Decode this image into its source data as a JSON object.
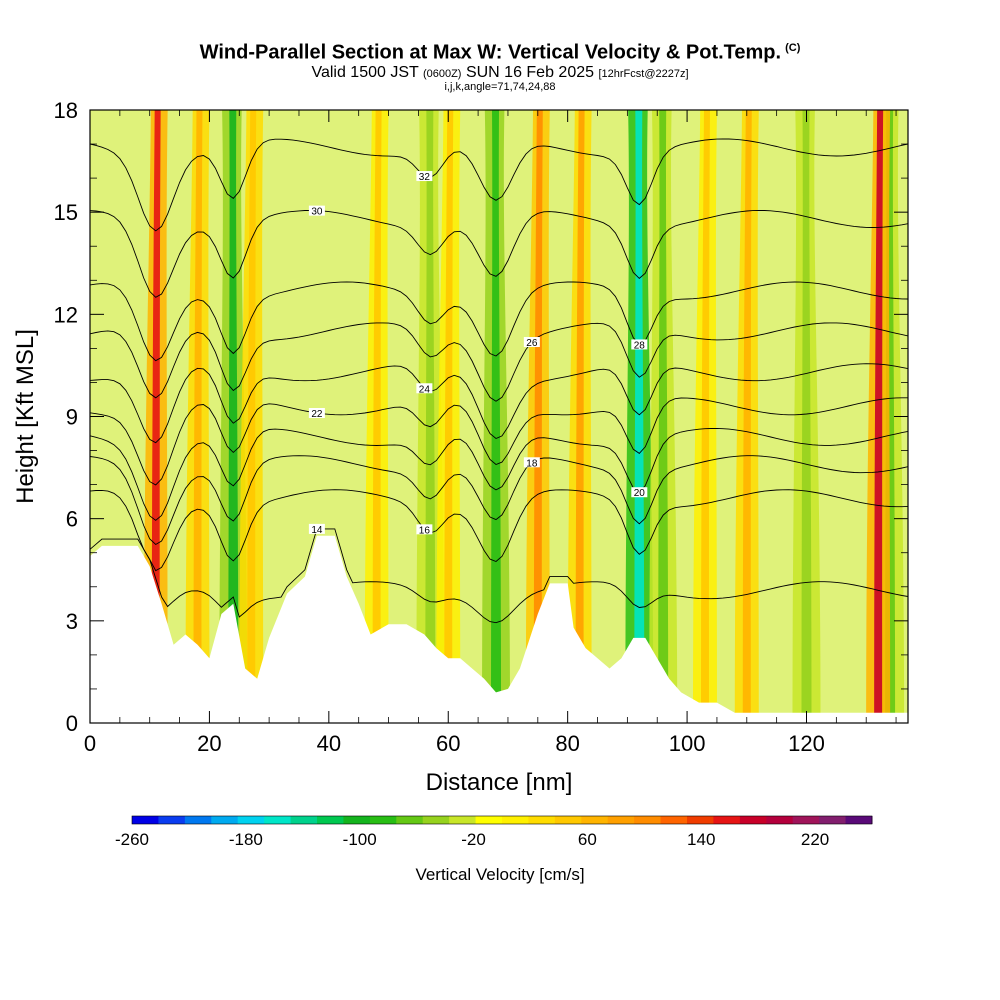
{
  "header": {
    "title": "Wind-Parallel Section at Max W: Vertical Velocity & Pot.Temp.",
    "copyright_mark": "(C)",
    "valid_prefix": "Valid 1500 JST",
    "valid_utc": "(0600Z)",
    "valid_date": "SUN 16 Feb 2025",
    "forecast_info": "[12hrFcst@2227z]",
    "grid_info": "i,j,k,angle=71,74,24,88"
  },
  "chart_data": {
    "type": "heatmap",
    "xlabel": "Distance [nm]",
    "ylabel": "Height [Kft MSL]",
    "xlim": [
      0,
      137
    ],
    "ylim": [
      0,
      18
    ],
    "x_ticks": [
      0,
      20,
      40,
      60,
      80,
      100,
      120
    ],
    "y_ticks": [
      0,
      3,
      6,
      9,
      12,
      15,
      18
    ],
    "x_tick_labels": [
      "0",
      "20",
      "40",
      "60",
      "80",
      "100",
      "120"
    ],
    "y_tick_labels": [
      "0",
      "3",
      "6",
      "9",
      "12",
      "15",
      "18"
    ],
    "colorbar": {
      "label": "Vertical Velocity [cm/s]",
      "min": -260,
      "max": 260,
      "tick_labels": [
        "-260",
        "-180",
        "-100",
        "-20",
        "60",
        "140",
        "220"
      ],
      "tick_values": [
        -260,
        -180,
        -100,
        -20,
        60,
        140,
        220
      ],
      "colors": [
        "#0000e6",
        "#0a3cf0",
        "#0078f0",
        "#00aaf0",
        "#00d2f0",
        "#00e6c8",
        "#00d28c",
        "#00c850",
        "#14b41e",
        "#28be14",
        "#64c814",
        "#96d21e",
        "#c8e628",
        "#ffff00",
        "#fff000",
        "#ffdc00",
        "#ffc800",
        "#ffb400",
        "#ffa000",
        "#ff8c00",
        "#ff6400",
        "#f03c00",
        "#e61414",
        "#c80028",
        "#b4003c",
        "#a0145a",
        "#821e6e",
        "#5a0a78"
      ]
    },
    "updrafts": [
      {
        "x": 11,
        "strength": 150
      },
      {
        "x": 18,
        "strength": 60
      },
      {
        "x": 27,
        "strength": 50
      },
      {
        "x": 48,
        "strength": 40
      },
      {
        "x": 60,
        "strength": 45
      },
      {
        "x": 75,
        "strength": 100
      },
      {
        "x": 82,
        "strength": 90
      },
      {
        "x": 103,
        "strength": 40
      },
      {
        "x": 110,
        "strength": 60
      },
      {
        "x": 132,
        "strength": 180
      }
    ],
    "downdrafts": [
      {
        "x": 24,
        "strength": -110
      },
      {
        "x": 57,
        "strength": -50
      },
      {
        "x": 68,
        "strength": -90
      },
      {
        "x": 92,
        "strength": -150
      },
      {
        "x": 96,
        "strength": -70
      },
      {
        "x": 120,
        "strength": -50
      },
      {
        "x": 134,
        "strength": -60
      }
    ],
    "terrain": [
      [
        0,
        4.9
      ],
      [
        2,
        5.2
      ],
      [
        8,
        5.2
      ],
      [
        10,
        4.6
      ],
      [
        12,
        3.5
      ],
      [
        14,
        2.3
      ],
      [
        16,
        2.6
      ],
      [
        18,
        2.3
      ],
      [
        20,
        1.9
      ],
      [
        22,
        3.2
      ],
      [
        24,
        3.5
      ],
      [
        26,
        1.6
      ],
      [
        28,
        1.3
      ],
      [
        30,
        2.5
      ],
      [
        33,
        3.8
      ],
      [
        36,
        4.3
      ],
      [
        38,
        5.5
      ],
      [
        41,
        5.5
      ],
      [
        43,
        4.3
      ],
      [
        45,
        3.5
      ],
      [
        47,
        2.6
      ],
      [
        50,
        2.9
      ],
      [
        53,
        2.9
      ],
      [
        56,
        2.6
      ],
      [
        58,
        2.2
      ],
      [
        60,
        1.9
      ],
      [
        62,
        1.9
      ],
      [
        64,
        1.6
      ],
      [
        66,
        1.3
      ],
      [
        68,
        0.9
      ],
      [
        70,
        1.0
      ],
      [
        72,
        1.6
      ],
      [
        75,
        3.2
      ],
      [
        77,
        4.1
      ],
      [
        80,
        4.1
      ],
      [
        81,
        2.8
      ],
      [
        83,
        2.2
      ],
      [
        85,
        1.9
      ],
      [
        87,
        1.6
      ],
      [
        89,
        1.9
      ],
      [
        91,
        2.5
      ],
      [
        93,
        2.5
      ],
      [
        95,
        1.9
      ],
      [
        97,
        1.3
      ],
      [
        99,
        0.9
      ],
      [
        102,
        0.6
      ],
      [
        105,
        0.6
      ],
      [
        108,
        0.3
      ],
      [
        137,
        0.3
      ]
    ],
    "theta_contours": [
      {
        "label": "14",
        "base": 3.9
      },
      {
        "label": "16",
        "base": 6.6
      },
      {
        "label": "18",
        "base": 7.6
      },
      {
        "label": "20",
        "base": 8.4
      },
      {
        "label": "22",
        "base": 9.3
      },
      {
        "label": "24",
        "base": 10.3
      },
      {
        "label": "26",
        "base": 11.5
      },
      {
        "label": "28",
        "base": 12.7
      },
      {
        "label": "30",
        "base": 14.8
      },
      {
        "label": "32",
        "base": 16.9
      }
    ]
  }
}
